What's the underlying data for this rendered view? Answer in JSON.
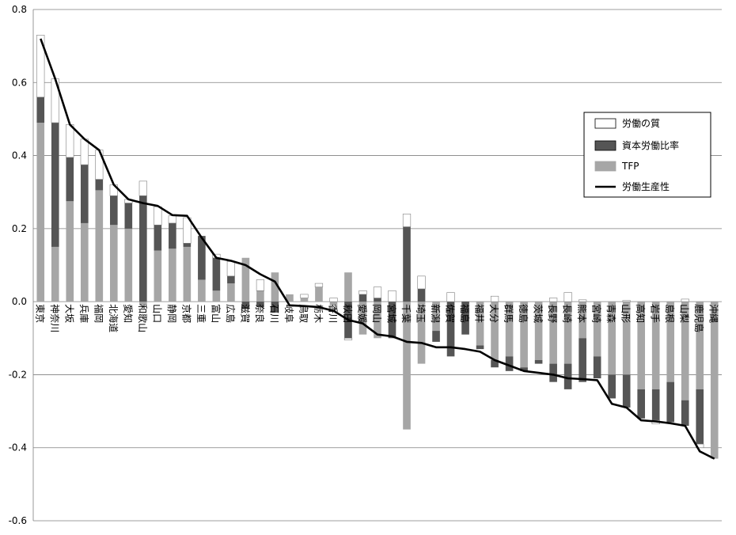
{
  "chart_data": {
    "type": "bar",
    "subtype": "stacked-bar-with-line",
    "title": "",
    "xlabel": "",
    "ylabel": "",
    "ylim": [
      -0.6,
      0.8
    ],
    "yticks": [
      "-0.6",
      "-0.4",
      "-0.2",
      "0.0",
      "0.2",
      "0.4",
      "0.6",
      "0.8"
    ],
    "grid": true,
    "legend_position": "right",
    "categories": [
      "東京",
      "神奈川",
      "大坂",
      "兵庫",
      "福岡",
      "北海道",
      "愛知",
      "和歌山",
      "山口",
      "静岡",
      "京都",
      "三重",
      "富山",
      "広島",
      "滋賀",
      "奈良",
      "石川",
      "岐阜",
      "鳥取",
      "栃木",
      "香川",
      "秋田",
      "愛媛",
      "岡山",
      "宮城",
      "千葉",
      "埼玉",
      "新潟",
      "佐賀",
      "福島",
      "福井",
      "大分",
      "群馬",
      "徳島",
      "茨城",
      "長野",
      "長崎",
      "熊本",
      "宮崎",
      "青森",
      "山形",
      "高知",
      "岩手",
      "島根",
      "山梨",
      "鹿児島",
      "沖縄"
    ],
    "series": [
      {
        "name": "労働の質",
        "kind": "bar",
        "color": "#ffffff",
        "values": [
          0.17,
          0.12,
          0.09,
          0.07,
          0.08,
          0.03,
          0.01,
          0.04,
          0.05,
          0.02,
          0.07,
          0.0,
          0.01,
          0.04,
          0.0,
          0.03,
          0.0,
          0.0,
          0.01,
          0.01,
          0.01,
          -0.005,
          0.01,
          0.03,
          0.03,
          0.035,
          0.035,
          0.0,
          0.025,
          0.0,
          0.0,
          0.015,
          0.0,
          0.0,
          0.0,
          0.01,
          0.025,
          0.005,
          0.0,
          0.0,
          0.003,
          0.0,
          -0.01,
          0.0,
          0.007,
          -0.01,
          0.0
        ]
      },
      {
        "name": "資本労働比率",
        "kind": "bar",
        "color": "#555555",
        "values": [
          0.07,
          0.34,
          0.12,
          0.16,
          0.03,
          0.08,
          0.07,
          0.29,
          0.07,
          0.07,
          0.01,
          0.12,
          0.09,
          0.02,
          -0.02,
          -0.015,
          -0.03,
          0.0,
          0.0,
          0.0,
          0.0,
          -0.1,
          0.02,
          0.01,
          -0.1,
          0.205,
          0.035,
          -0.03,
          -0.15,
          -0.09,
          -0.01,
          -0.02,
          -0.04,
          -0.01,
          -0.01,
          -0.05,
          -0.07,
          -0.12,
          -0.06,
          -0.065,
          -0.09,
          -0.08,
          -0.085,
          -0.11,
          -0.07,
          -0.15,
          0.0
        ]
      },
      {
        "name": "TFP",
        "kind": "bar",
        "color": "#a6a6a6",
        "values": [
          0.49,
          0.15,
          0.275,
          0.215,
          0.305,
          0.21,
          0.2,
          -0.01,
          0.14,
          0.145,
          0.15,
          0.06,
          0.03,
          0.05,
          0.12,
          0.03,
          0.08,
          0.02,
          0.01,
          0.04,
          -0.01,
          0.08,
          -0.09,
          -0.1,
          0.0,
          -0.35,
          -0.17,
          -0.08,
          0.0,
          0.0,
          -0.12,
          -0.16,
          -0.15,
          -0.18,
          -0.16,
          -0.17,
          -0.17,
          -0.1,
          -0.15,
          -0.2,
          -0.2,
          -0.24,
          -0.24,
          -0.22,
          -0.27,
          -0.24,
          -0.43
        ]
      },
      {
        "name": "労働生産性",
        "kind": "line",
        "color": "#000000",
        "values": [
          0.72,
          0.61,
          0.485,
          0.445,
          0.415,
          0.32,
          0.28,
          0.27,
          0.262,
          0.237,
          0.235,
          0.175,
          0.12,
          0.112,
          0.1,
          0.075,
          0.055,
          -0.01,
          -0.012,
          -0.015,
          -0.025,
          -0.05,
          -0.06,
          -0.09,
          -0.095,
          -0.11,
          -0.113,
          -0.125,
          -0.125,
          -0.13,
          -0.137,
          -0.16,
          -0.175,
          -0.19,
          -0.195,
          -0.2,
          -0.21,
          -0.212,
          -0.215,
          -0.28,
          -0.29,
          -0.325,
          -0.328,
          -0.333,
          -0.34,
          -0.41,
          -0.43
        ]
      }
    ],
    "legend": [
      {
        "label": "労働の質",
        "marker": "box",
        "color": "#ffffff"
      },
      {
        "label": "資本労働比率",
        "marker": "box",
        "color": "#555555"
      },
      {
        "label": "TFP",
        "marker": "box",
        "color": "#a6a6a6"
      },
      {
        "label": "労働生産性",
        "marker": "line",
        "color": "#000000"
      }
    ]
  }
}
